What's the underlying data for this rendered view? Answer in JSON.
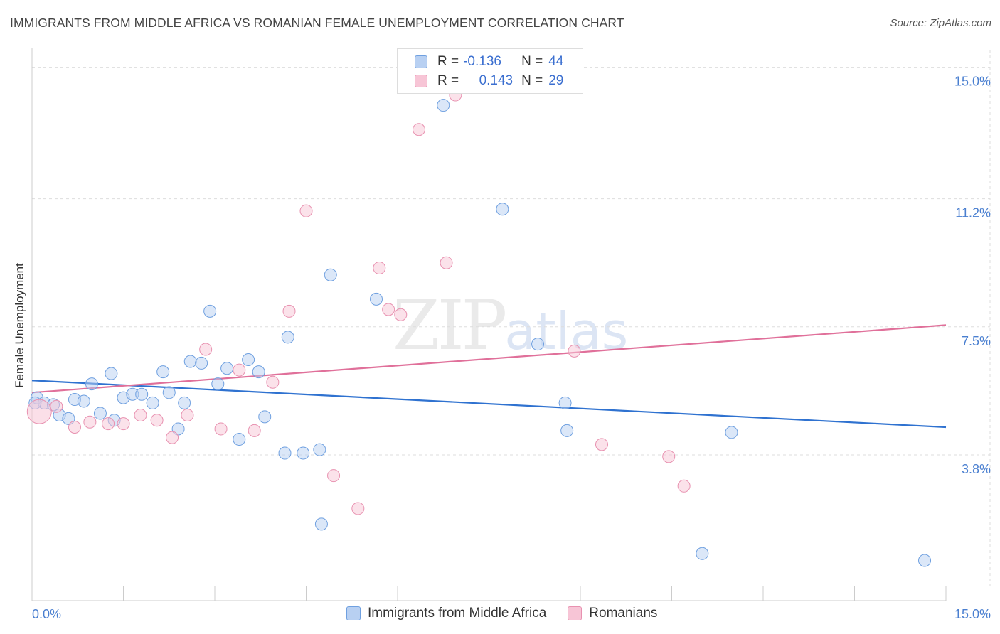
{
  "header": {
    "title": "IMMIGRANTS FROM MIDDLE AFRICA VS ROMANIAN FEMALE UNEMPLOYMENT CORRELATION CHART",
    "source": "Source: ZipAtlas.com"
  },
  "watermark": {
    "zip": "ZIP",
    "atlas": "atlas"
  },
  "legend": {
    "rows": [
      {
        "r_label": "R =",
        "r_value": "-0.136",
        "n_label": "N =",
        "n_value": "44"
      },
      {
        "r_label": "R =",
        "r_value": "0.143",
        "n_label": "N =",
        "n_value": "29"
      }
    ]
  },
  "colors": {
    "blue": "#6fa0e0",
    "blue_fill": "#b8d0f2",
    "blue_line": "#2f72d0",
    "pink": "#e891b0",
    "pink_fill": "#f7c5d6",
    "pink_line": "#e0709a",
    "tick_text": "#4a7fd0"
  },
  "chart_data": {
    "type": "scatter",
    "title": "IMMIGRANTS FROM MIDDLE AFRICA VS ROMANIAN FEMALE UNEMPLOYMENT CORRELATION CHART",
    "xlabel": "",
    "ylabel": "Female Unemployment",
    "xlim": [
      0,
      15
    ],
    "ylim": [
      0,
      15.3
    ],
    "y_ticks": [
      3.8,
      7.5,
      11.2,
      15.0
    ],
    "y_tick_labels": [
      "3.8%",
      "7.5%",
      "11.2%",
      "15.0%"
    ],
    "x_tick_labels": [
      "0.0%",
      "15.0%"
    ],
    "series": [
      {
        "name": "Immigrants from Middle Africa",
        "color": "blue",
        "r": -0.136,
        "n": 44,
        "trend": [
          [
            0,
            5.95
          ],
          [
            15,
            4.6
          ]
        ],
        "points": [
          [
            0.08,
            5.45
          ],
          [
            0.2,
            5.3
          ],
          [
            0.35,
            5.25
          ],
          [
            0.45,
            4.95
          ],
          [
            0.6,
            4.85
          ],
          [
            0.7,
            5.4
          ],
          [
            0.85,
            5.35
          ],
          [
            0.98,
            5.85
          ],
          [
            1.12,
            5.0
          ],
          [
            1.3,
            6.15
          ],
          [
            1.35,
            4.8
          ],
          [
            1.5,
            5.45
          ],
          [
            1.65,
            5.55
          ],
          [
            1.8,
            5.55
          ],
          [
            1.98,
            5.3
          ],
          [
            2.15,
            6.2
          ],
          [
            2.25,
            5.6
          ],
          [
            2.4,
            4.55
          ],
          [
            2.5,
            5.3
          ],
          [
            2.6,
            6.5
          ],
          [
            2.78,
            6.45
          ],
          [
            2.92,
            7.95
          ],
          [
            3.05,
            5.85
          ],
          [
            3.2,
            6.3
          ],
          [
            3.4,
            4.25
          ],
          [
            3.55,
            6.55
          ],
          [
            3.72,
            6.2
          ],
          [
            3.82,
            4.9
          ],
          [
            4.15,
            3.85
          ],
          [
            4.2,
            7.2
          ],
          [
            4.45,
            3.85
          ],
          [
            4.72,
            3.95
          ],
          [
            4.75,
            1.8
          ],
          [
            4.9,
            9.0
          ],
          [
            5.65,
            8.3
          ],
          [
            6.75,
            13.9
          ],
          [
            7.72,
            10.9
          ],
          [
            8.3,
            7.0
          ],
          [
            8.75,
            5.3
          ],
          [
            8.78,
            4.5
          ],
          [
            11.0,
            0.95
          ],
          [
            11.48,
            4.45
          ],
          [
            14.65,
            0.75
          ],
          [
            0.05,
            5.3
          ]
        ]
      },
      {
        "name": "Romanians",
        "color": "pink",
        "r": 0.143,
        "n": 29,
        "trend": [
          [
            0,
            5.6
          ],
          [
            15,
            7.55
          ]
        ],
        "points": [
          [
            0.12,
            5.05
          ],
          [
            0.4,
            5.2
          ],
          [
            0.7,
            4.6
          ],
          [
            0.95,
            4.75
          ],
          [
            1.25,
            4.7
          ],
          [
            1.5,
            4.7
          ],
          [
            1.78,
            4.95
          ],
          [
            2.05,
            4.8
          ],
          [
            2.3,
            4.3
          ],
          [
            2.55,
            4.95
          ],
          [
            2.85,
            6.85
          ],
          [
            3.1,
            4.55
          ],
          [
            3.4,
            6.25
          ],
          [
            3.65,
            4.5
          ],
          [
            3.95,
            5.9
          ],
          [
            4.22,
            7.95
          ],
          [
            4.5,
            10.85
          ],
          [
            4.95,
            3.2
          ],
          [
            5.35,
            2.25
          ],
          [
            5.7,
            9.2
          ],
          [
            5.85,
            8.0
          ],
          [
            6.05,
            7.85
          ],
          [
            6.35,
            13.2
          ],
          [
            6.8,
            9.35
          ],
          [
            6.95,
            14.2
          ],
          [
            8.9,
            6.8
          ],
          [
            9.35,
            4.1
          ],
          [
            10.45,
            3.75
          ],
          [
            10.7,
            2.9
          ]
        ]
      }
    ]
  },
  "bottom_legend": {
    "items": [
      {
        "label": "Immigrants from Middle Africa"
      },
      {
        "label": "Romanians"
      }
    ]
  }
}
